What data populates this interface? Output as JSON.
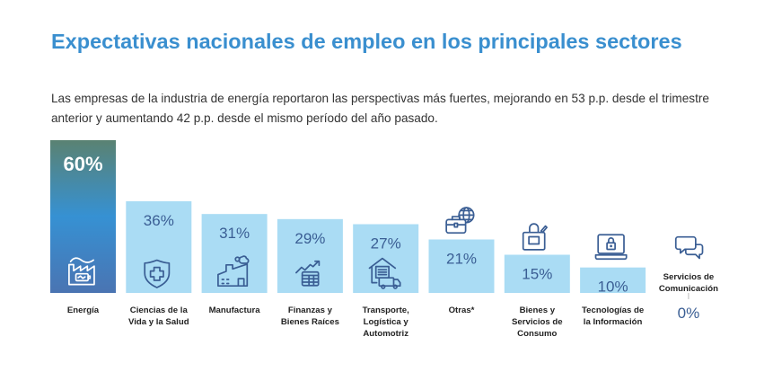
{
  "header": {
    "title": "Expectativas nacionales de empleo en los principales sectores",
    "subtitle": "Las empresas de la industria de energía reportaron las perspectivas más fuertes, mejorando en 53 p.p. desde el trimestre anterior y aumentando 42 p.p. desde el mismo período del año pasado."
  },
  "colors": {
    "title": "#3a8fcf",
    "bar_fill": "#aadcf4",
    "bar_text": "#3a5e94",
    "icon_stroke": "#3a5e94",
    "highlight_top": "#5a8272",
    "highlight_mid": "#3691d3",
    "highlight_bottom": "#4a74b2",
    "highlight_text": "#ffffff",
    "label_text": "#222222"
  },
  "chart_data": {
    "type": "bar",
    "title": "Expectativas nacionales de empleo en los principales sectores",
    "xlabel": "",
    "ylabel": "",
    "ylim": [
      0,
      60
    ],
    "grid": false,
    "value_suffix": "%",
    "categories": [
      [
        "Energía"
      ],
      [
        "Ciencias de la",
        "Vida y la Salud"
      ],
      [
        "Manufactura"
      ],
      [
        "Finanzas y",
        "Bienes Raíces"
      ],
      [
        "Transporte,",
        "Logística y",
        "Automotriz"
      ],
      [
        "Otras*"
      ],
      [
        "Bienes y",
        "Servicios de",
        "Consumo"
      ],
      [
        "Tecnologías de",
        "la Información"
      ],
      [
        "Servicios de",
        "Comunicación"
      ]
    ],
    "values": [
      60,
      36,
      31,
      29,
      27,
      21,
      15,
      10,
      0
    ],
    "value_labels": [
      "60%",
      "36%",
      "31%",
      "29%",
      "27%",
      "21%",
      "15%",
      "10%",
      "0%"
    ],
    "highlight_index": 0,
    "icons": [
      "factory-battery-icon",
      "shield-cross-icon",
      "factory-smoke-icon",
      "chart-table-icon",
      "warehouse-truck-icon",
      "briefcase-globe-icon",
      "shopping-bag-icon",
      "laptop-lock-icon",
      "chat-bubbles-icon"
    ]
  }
}
